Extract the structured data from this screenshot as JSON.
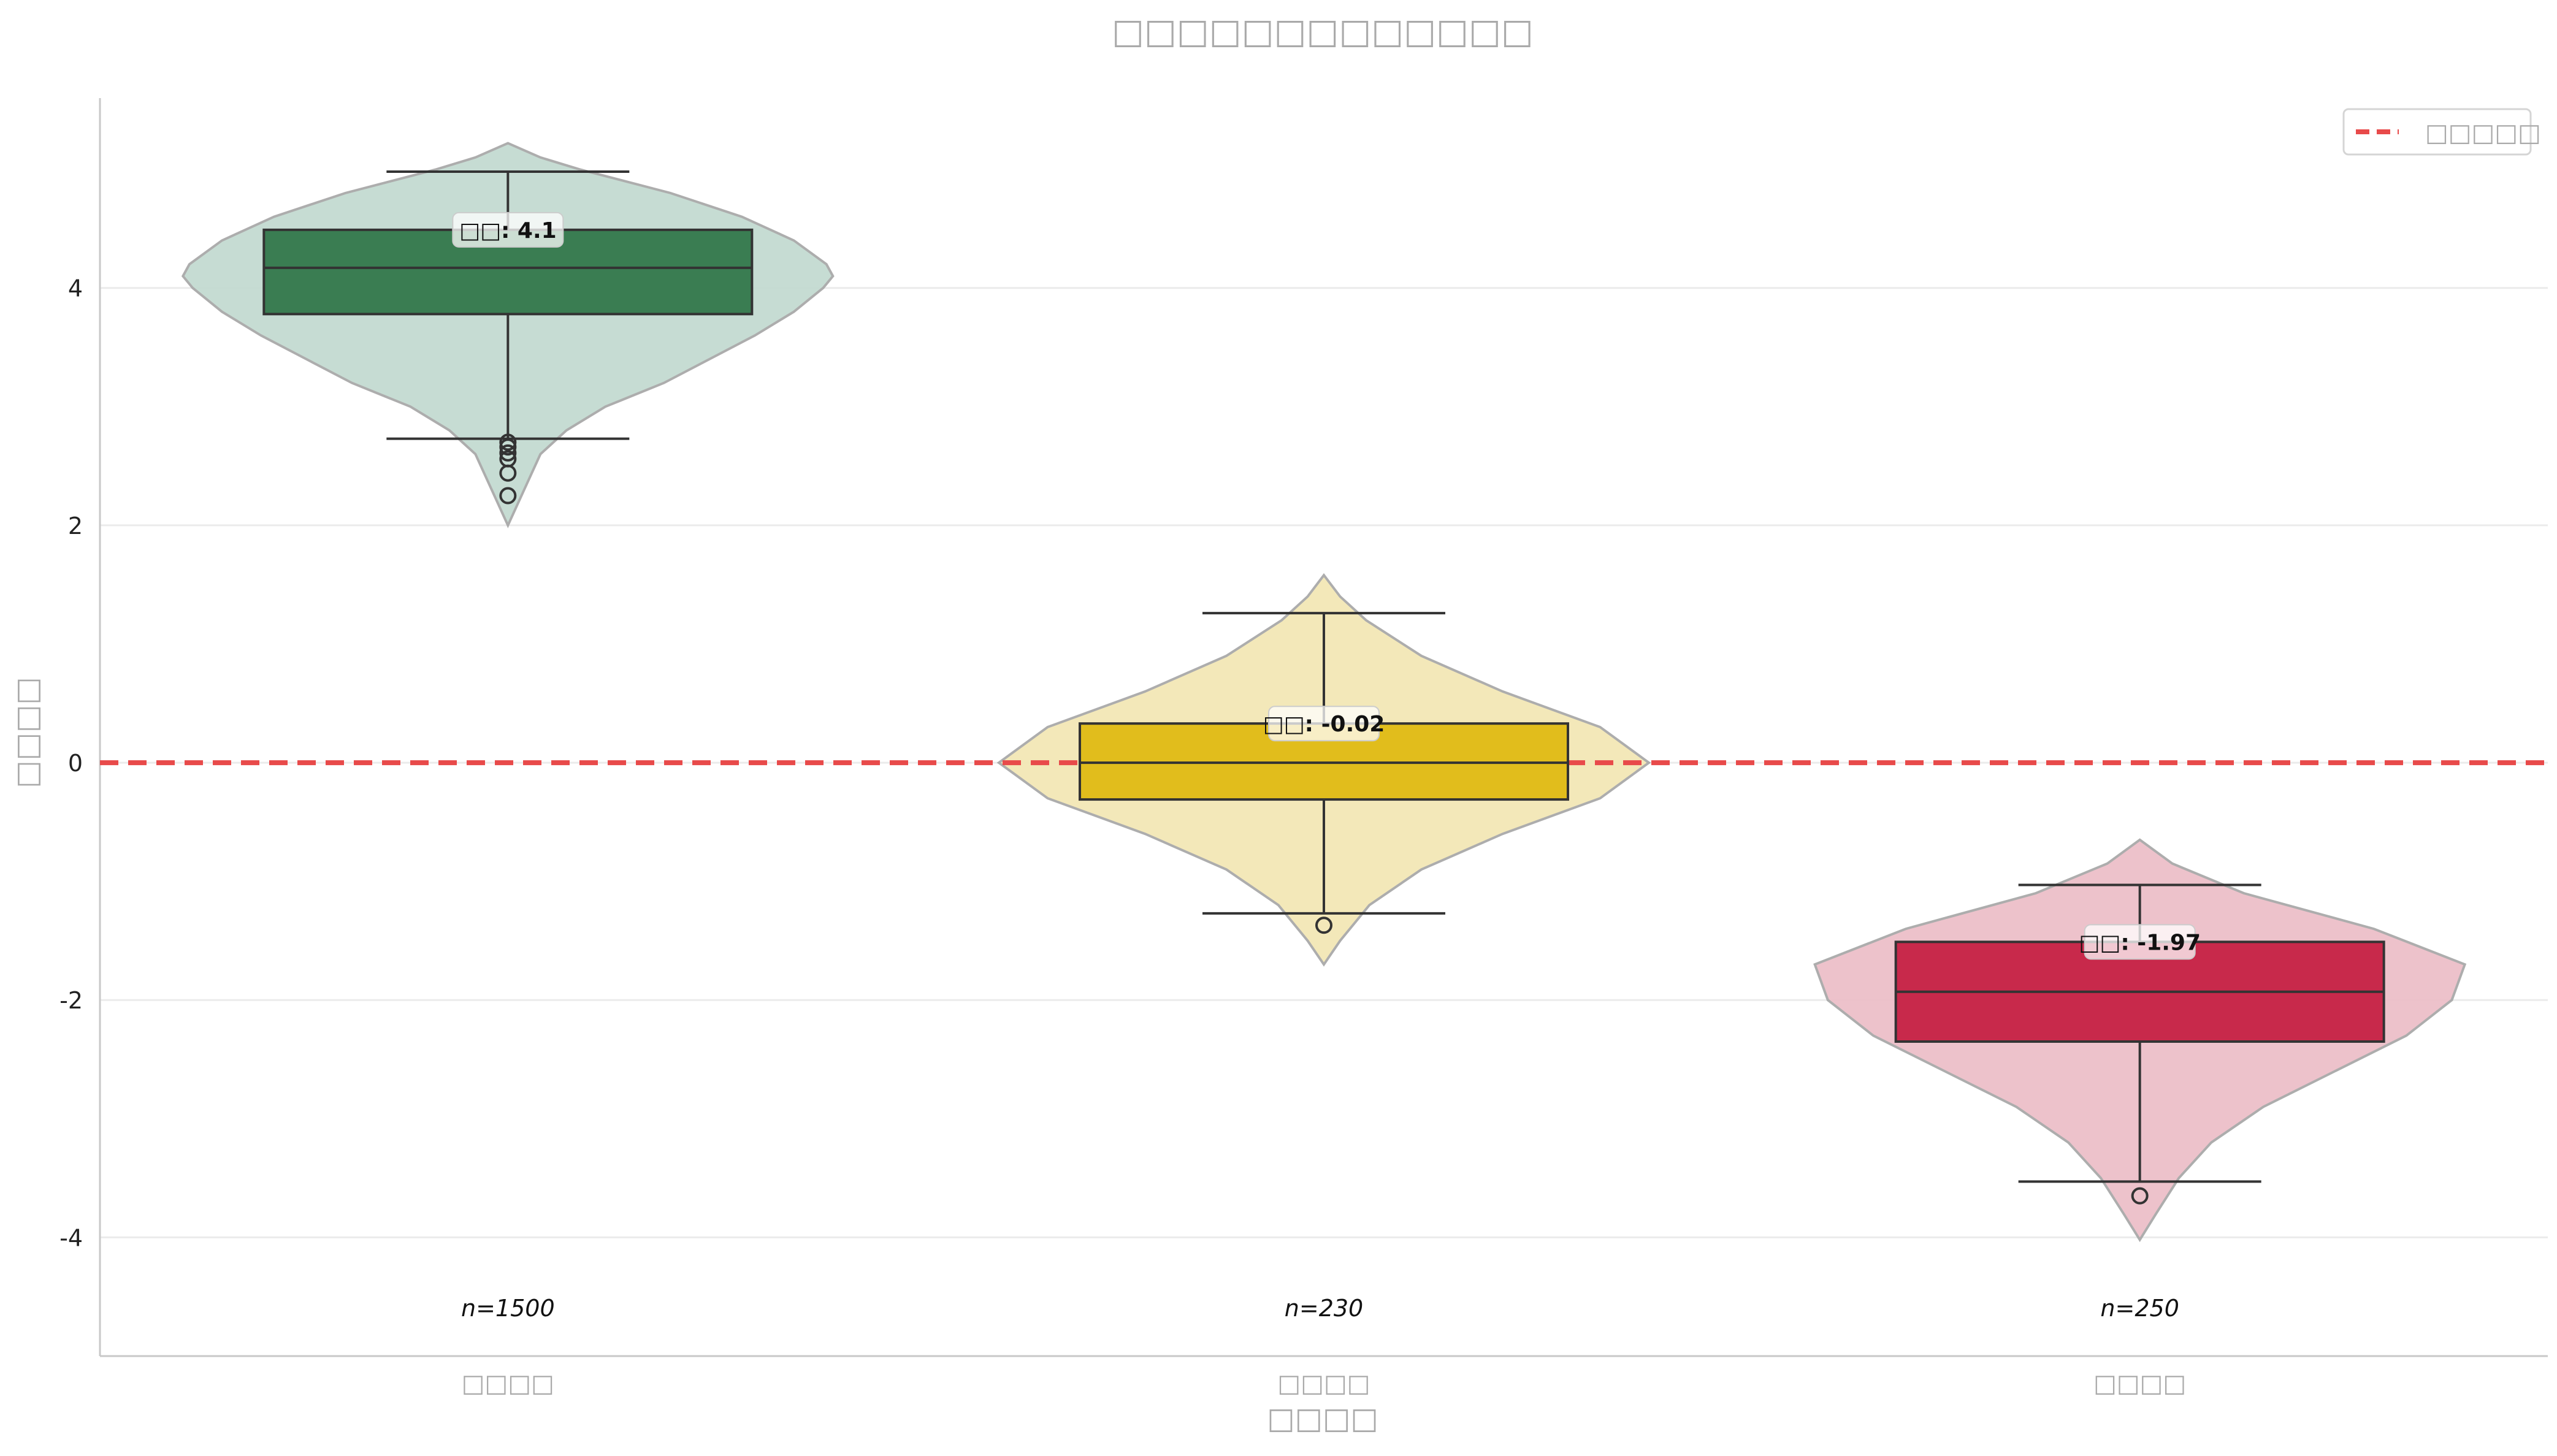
{
  "chart_data": {
    "type": "violin",
    "title": "□□□□□□□□□□□□□",
    "xlabel": "□□□□",
    "ylabel": "□□□□",
    "ylim": [
      -5,
      5.6
    ],
    "yticks": [
      -4,
      -2,
      0,
      2,
      4
    ],
    "ytick_labels": [
      "-4",
      "-2",
      "0",
      "2",
      "4"
    ],
    "grid": "horizontal",
    "reference_line": {
      "y": 0,
      "label": "□□□□□",
      "color": "#e84a4a",
      "style": "dashed"
    },
    "legend": {
      "placement": "top-right",
      "entries": [
        "□□□□□"
      ]
    },
    "groups": [
      {
        "category": "□□□□",
        "n_label": "n=1500",
        "mean_label": "□□: 4.1",
        "color": "#3a7d52",
        "violin_color": "#c3dbd1",
        "box": {
          "q1": 3.78,
          "median": 4.17,
          "q3": 4.49,
          "whisker_low": 2.73,
          "whisker_high": 4.98
        },
        "outliers": [
          2.7,
          2.66,
          2.61,
          2.56,
          2.44,
          2.25
        ],
        "violin": {
          "y_min": 2.0,
          "y_max": 5.22,
          "profile": [
            [
              2.0,
              0.0
            ],
            [
              2.3,
              0.05
            ],
            [
              2.6,
              0.1
            ],
            [
              2.8,
              0.18
            ],
            [
              3.0,
              0.3
            ],
            [
              3.2,
              0.48
            ],
            [
              3.4,
              0.62
            ],
            [
              3.6,
              0.76
            ],
            [
              3.8,
              0.88
            ],
            [
              4.0,
              0.97
            ],
            [
              4.1,
              1.0
            ],
            [
              4.2,
              0.98
            ],
            [
              4.4,
              0.88
            ],
            [
              4.6,
              0.72
            ],
            [
              4.8,
              0.5
            ],
            [
              5.0,
              0.22
            ],
            [
              5.1,
              0.1
            ],
            [
              5.22,
              0.0
            ]
          ]
        }
      },
      {
        "category": "□□□□",
        "n_label": "n=230",
        "mean_label": "□□: -0.02",
        "color": "#e1bd1c",
        "violin_color": "#f3e7b6",
        "box": {
          "q1": -0.31,
          "median": 0.0,
          "q3": 0.33,
          "whisker_low": -1.27,
          "whisker_high": 1.26
        },
        "outliers": [
          -1.37
        ],
        "violin": {
          "y_min": -1.7,
          "y_max": 1.58,
          "profile": [
            [
              -1.7,
              0.0
            ],
            [
              -1.5,
              0.05
            ],
            [
              -1.2,
              0.14
            ],
            [
              -0.9,
              0.3
            ],
            [
              -0.6,
              0.55
            ],
            [
              -0.3,
              0.85
            ],
            [
              0.0,
              1.0
            ],
            [
              0.3,
              0.85
            ],
            [
              0.6,
              0.55
            ],
            [
              0.9,
              0.3
            ],
            [
              1.2,
              0.13
            ],
            [
              1.4,
              0.05
            ],
            [
              1.58,
              0.0
            ]
          ]
        }
      },
      {
        "category": "□□□□",
        "n_label": "n=250",
        "mean_label": "□□: -1.97",
        "color": "#c8294b",
        "violin_color": "#edbfc9",
        "box": {
          "q1": -2.35,
          "median": -1.93,
          "q3": -1.51,
          "whisker_low": -3.53,
          "whisker_high": -1.03
        },
        "outliers": [
          -3.65
        ],
        "violin": {
          "y_min": -4.02,
          "y_max": -0.65,
          "profile": [
            [
              -4.02,
              0.0
            ],
            [
              -3.8,
              0.05
            ],
            [
              -3.5,
              0.12
            ],
            [
              -3.2,
              0.22
            ],
            [
              -2.9,
              0.38
            ],
            [
              -2.6,
              0.6
            ],
            [
              -2.3,
              0.82
            ],
            [
              -2.0,
              0.96
            ],
            [
              -1.7,
              1.0
            ],
            [
              -1.4,
              0.72
            ],
            [
              -1.1,
              0.32
            ],
            [
              -0.85,
              0.1
            ],
            [
              -0.65,
              0.0
            ]
          ]
        }
      }
    ]
  }
}
